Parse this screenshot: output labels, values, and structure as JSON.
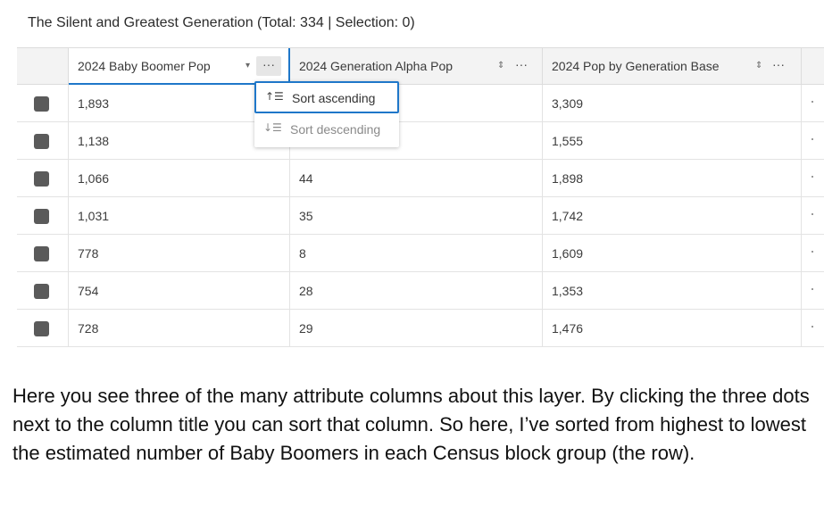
{
  "table": {
    "title": "The Silent and Greatest Generation (Total: 334 | Selection: 0)",
    "columns": [
      {
        "label": "2024 Baby Boomer Pop",
        "sort_icon": "▾",
        "more": "···"
      },
      {
        "label": "2024 Generation Alpha Pop",
        "sort_icon": "⇕",
        "more": "···"
      },
      {
        "label": "2024 Pop by Generation Base",
        "sort_icon": "⇕",
        "more": "···"
      }
    ],
    "rows": [
      {
        "boomer": "1,893",
        "alpha": "",
        "base": "3,309"
      },
      {
        "boomer": "1,138",
        "alpha": "",
        "base": "1,555"
      },
      {
        "boomer": "1,066",
        "alpha": "44",
        "base": "1,898"
      },
      {
        "boomer": "1,031",
        "alpha": "35",
        "base": "1,742"
      },
      {
        "boomer": "778",
        "alpha": "8",
        "base": "1,609"
      },
      {
        "boomer": "754",
        "alpha": "28",
        "base": "1,353"
      },
      {
        "boomer": "728",
        "alpha": "29",
        "base": "1,476"
      }
    ]
  },
  "sort_menu": {
    "items": [
      {
        "label": "Sort ascending",
        "icon": "sort-ascending-icon",
        "glyph": "↑☰"
      },
      {
        "label": "Sort descending",
        "icon": "sort-descending-icon",
        "glyph": "↓☰"
      }
    ]
  },
  "caption": "Here you see three of the many attribute columns about this layer. By clicking the three dots next to the column title you can sort that column. So here, I’ve sorted from highest to lowest the estimated number of Baby Boomers in each Census block group (the row).",
  "colors": {
    "accent": "#1f77c9",
    "checkbox": "#5a5a5a",
    "header_bg": "#f3f3f3"
  }
}
